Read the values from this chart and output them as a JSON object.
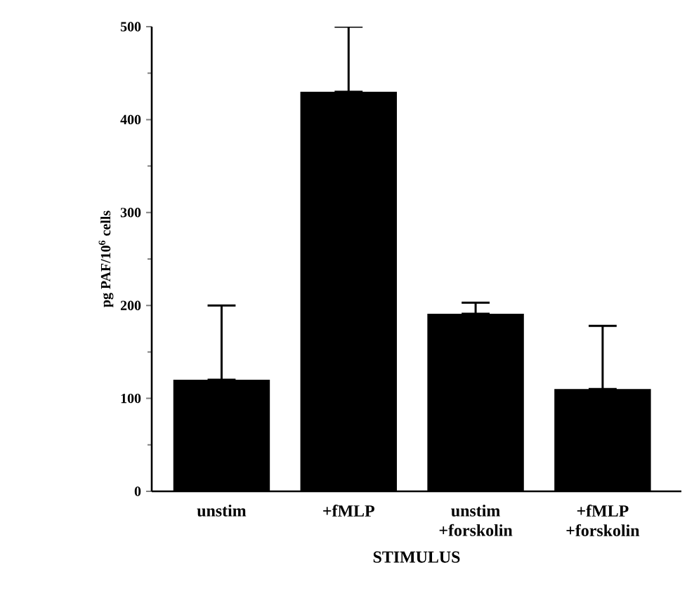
{
  "chart_data": {
    "type": "bar",
    "xlabel": "STIMULUS",
    "ylabel": "pg PAF/10$^{6}$ cells",
    "categories": [
      "unstim",
      "+fMLP",
      "unstim +forskolin",
      "+fMLP +forskolin"
    ],
    "values": [
      120,
      430,
      191,
      110
    ],
    "errors": [
      [
        120,
        200
      ],
      [
        430,
        500
      ],
      [
        191,
        203
      ],
      [
        110,
        178
      ]
    ],
    "color": "#000000",
    "ylim": [
      0,
      500
    ],
    "yticks": [
      0,
      100,
      200,
      300,
      400,
      500
    ],
    "grid": false
  }
}
